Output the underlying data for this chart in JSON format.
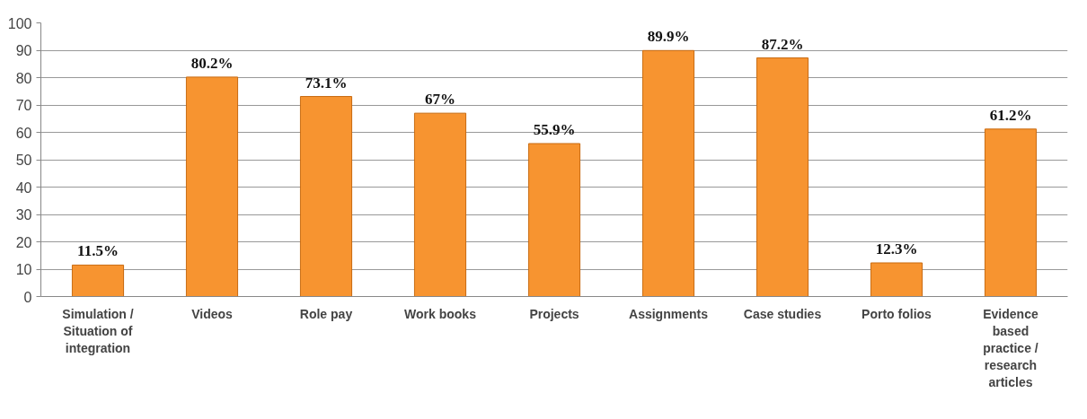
{
  "chart_data": {
    "type": "bar",
    "categories": [
      "Simulation / Situation of integration",
      "Videos",
      "Role pay",
      "Work books",
      "Projects",
      "Assignments",
      "Case studies",
      "Porto folios",
      "Evidence based practice / research articles"
    ],
    "values": [
      11.5,
      80.2,
      73.1,
      67,
      55.9,
      89.9,
      87.2,
      12.3,
      61.2
    ],
    "value_labels": [
      "11.5%",
      "80.2%",
      "73.1%",
      "67%",
      "55.9%",
      "89.9%",
      "87.2%",
      "12.3%",
      "61.2%"
    ],
    "color": "#f79430",
    "ylim": [
      0,
      100
    ],
    "yticks": [
      0,
      10,
      20,
      30,
      40,
      50,
      60,
      70,
      80,
      90,
      100
    ],
    "grid": "y"
  }
}
